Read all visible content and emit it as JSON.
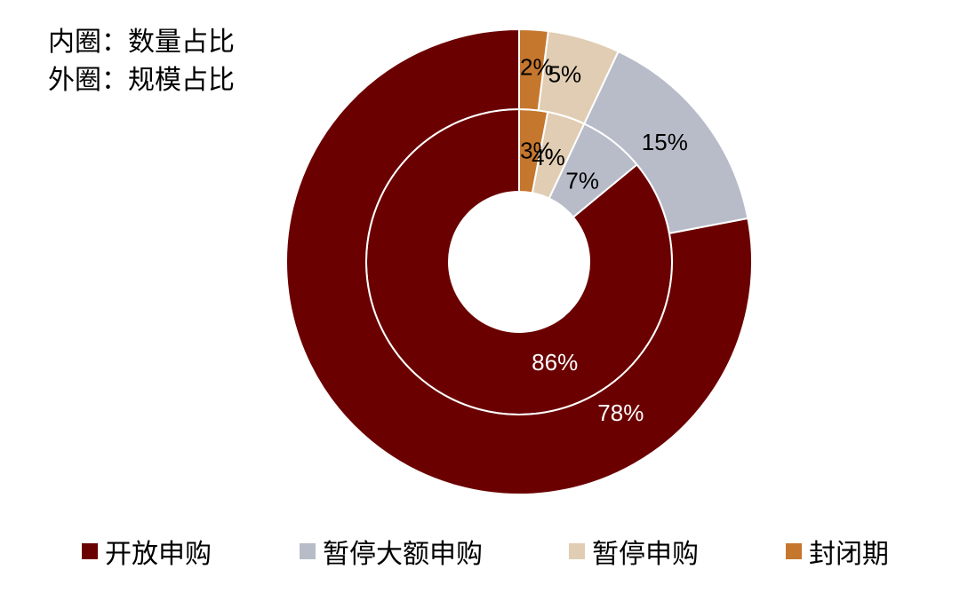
{
  "notes": {
    "inner": "内圈：数量占比",
    "outer": "外圈：规模占比"
  },
  "chart_data": {
    "type": "pie",
    "variant": "nested-donut",
    "categories": [
      "开放申购",
      "暂停大额申购",
      "暂停申购",
      "封闭期"
    ],
    "colors": [
      "#6b0000",
      "#b8bcc8",
      "#e0cdb3",
      "#c5772e"
    ],
    "rings": [
      {
        "ring": "inner",
        "values": [
          86,
          7,
          4,
          3
        ],
        "labels": [
          "86%",
          "7%",
          "4%",
          "3%"
        ]
      },
      {
        "ring": "outer",
        "values": [
          78,
          15,
          5,
          2
        ],
        "labels": [
          "78%",
          "15%",
          "5%",
          "2%"
        ]
      }
    ],
    "legend_position": "bottom"
  }
}
